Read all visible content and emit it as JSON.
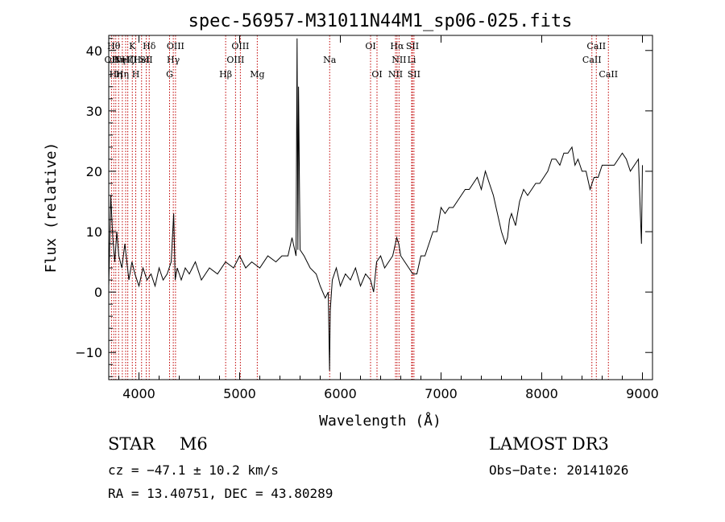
{
  "chart_data": {
    "type": "line",
    "title": "spec-56957-M31011N44M1_sp06-025.fits",
    "xlabel": "Wavelength (Å)",
    "ylabel": "Flux (relative)",
    "xlim": [
      3700,
      9100
    ],
    "ylim": [
      -14.5,
      42.5
    ],
    "xticks": [
      4000,
      5000,
      6000,
      7000,
      8000,
      9000
    ],
    "yticks": [
      -10,
      0,
      10,
      20,
      30,
      40
    ],
    "xtick_labels": [
      "4000",
      "5000",
      "6000",
      "7000",
      "8000",
      "9000"
    ],
    "ytick_labels": [
      "−10",
      "0",
      "10",
      "20",
      "30",
      "40"
    ],
    "series": [
      {
        "name": "spectrum",
        "x": [
          3700,
          3720,
          3740,
          3760,
          3780,
          3800,
          3830,
          3860,
          3900,
          3930,
          3960,
          4000,
          4040,
          4080,
          4120,
          4160,
          4200,
          4240,
          4280,
          4320,
          4345,
          4360,
          4380,
          4420,
          4460,
          4500,
          4560,
          4620,
          4700,
          4780,
          4860,
          4940,
          5000,
          5060,
          5120,
          5200,
          5280,
          5360,
          5420,
          5480,
          5520,
          5560,
          5570,
          5578,
          5585,
          5600,
          5640,
          5700,
          5760,
          5800,
          5850,
          5880,
          5893,
          5900,
          5920,
          5960,
          6000,
          6050,
          6100,
          6150,
          6200,
          6250,
          6300,
          6330,
          6360,
          6400,
          6440,
          6480,
          6520,
          6560,
          6580,
          6600,
          6640,
          6680,
          6720,
          6760,
          6800,
          6840,
          6880,
          6920,
          6960,
          7000,
          7040,
          7080,
          7120,
          7160,
          7200,
          7240,
          7280,
          7320,
          7360,
          7400,
          7440,
          7480,
          7520,
          7560,
          7600,
          7640,
          7660,
          7680,
          7700,
          7740,
          7780,
          7820,
          7860,
          7900,
          7940,
          7980,
          8020,
          8060,
          8100,
          8140,
          8180,
          8220,
          8260,
          8300,
          8330,
          8360,
          8400,
          8440,
          8480,
          8520,
          8560,
          8600,
          8640,
          8680,
          8720,
          8760,
          8800,
          8840,
          8880,
          8920,
          8960,
          8990,
          9000
        ],
        "y": [
          1,
          16,
          9,
          5,
          10,
          6,
          4,
          8,
          2,
          5,
          3,
          1,
          4,
          2,
          3,
          1,
          4,
          2,
          3,
          5,
          13,
          2,
          4,
          2,
          4,
          3,
          5,
          2,
          4,
          3,
          5,
          4,
          6,
          4,
          5,
          4,
          6,
          5,
          6,
          6,
          9,
          6,
          42,
          7,
          34,
          7,
          6,
          4,
          3,
          1,
          -1,
          0,
          -13,
          -3,
          2,
          4,
          1,
          3,
          2,
          4,
          1,
          3,
          2,
          0,
          5,
          6,
          4,
          5,
          6,
          9,
          8,
          6,
          5,
          4,
          3,
          3,
          6,
          6,
          8,
          10,
          10,
          14,
          13,
          14,
          14,
          15,
          16,
          17,
          17,
          18,
          19,
          17,
          20,
          18,
          16,
          13,
          10,
          8,
          9,
          12,
          13,
          11,
          15,
          17,
          16,
          17,
          18,
          18,
          19,
          20,
          22,
          22,
          21,
          23,
          23,
          24,
          21,
          22,
          20,
          20,
          17,
          19,
          19,
          21,
          21,
          21,
          21,
          22,
          23,
          22,
          20,
          21,
          22,
          8,
          21
        ]
      }
    ],
    "line_markers": [
      {
        "x": 3727,
        "label": "OII",
        "tier": 2
      },
      {
        "x": 3750,
        "label": "Hθ",
        "tier": 1
      },
      {
        "x": 3770,
        "label": "Hη",
        "tier": 3
      },
      {
        "x": 3798,
        "label": "Hη",
        "tier": 2
      },
      {
        "x": 3835,
        "label": "Hη",
        "tier": 3
      },
      {
        "x": 3868,
        "label": "NeIII",
        "tier": 2
      },
      {
        "x": 3889,
        "label": "Hζ",
        "tier": 2
      },
      {
        "x": 3934,
        "label": "K",
        "tier": 1
      },
      {
        "x": 3968,
        "label": "H",
        "tier": 3
      },
      {
        "x": 4026,
        "label": "HeI",
        "tier": 2
      },
      {
        "x": 4072,
        "label": "SII",
        "tier": 2
      },
      {
        "x": 4102,
        "label": "Hδ",
        "tier": 1
      },
      {
        "x": 4304,
        "label": "G",
        "tier": 3
      },
      {
        "x": 4341,
        "label": "Hγ",
        "tier": 2
      },
      {
        "x": 4363,
        "label": "OIII",
        "tier": 1
      },
      {
        "x": 4861,
        "label": "Hβ",
        "tier": 3
      },
      {
        "x": 4959,
        "label": "OIII",
        "tier": 2
      },
      {
        "x": 5007,
        "label": "OIII",
        "tier": 1
      },
      {
        "x": 5175,
        "label": "Mg",
        "tier": 3
      },
      {
        "x": 5894,
        "label": "Na",
        "tier": 2
      },
      {
        "x": 6300,
        "label": "OI",
        "tier": 1
      },
      {
        "x": 6364,
        "label": "OI",
        "tier": 3
      },
      {
        "x": 6548,
        "label": "NII",
        "tier": 3
      },
      {
        "x": 6563,
        "label": "Hα",
        "tier": 1
      },
      {
        "x": 6583,
        "label": "NII",
        "tier": 2
      },
      {
        "x": 6708,
        "label": "Li",
        "tier": 2
      },
      {
        "x": 6716,
        "label": "SII",
        "tier": 1
      },
      {
        "x": 6731,
        "label": "SII",
        "tier": 3
      },
      {
        "x": 8498,
        "label": "CaII",
        "tier": 2
      },
      {
        "x": 8542,
        "label": "CaII",
        "tier": 1
      },
      {
        "x": 8662,
        "label": "CaII",
        "tier": 3
      }
    ]
  },
  "info": {
    "class": "STAR",
    "subclass": "M6",
    "survey": "LAMOST DR3",
    "cz": "cz = −47.1 ± 10.2 km/s",
    "obs_date": "Obs−Date: 20141026",
    "radec": "RA =  13.40751, DEC =  43.80289"
  },
  "colors": {
    "marker": "#c00000",
    "ink": "#000000"
  }
}
